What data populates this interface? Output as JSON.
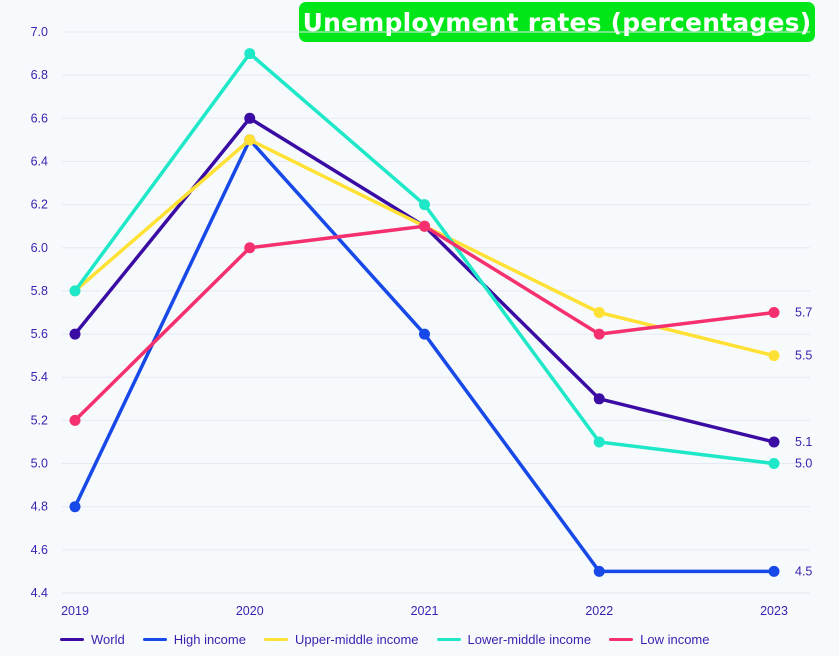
{
  "chart_data": {
    "type": "line",
    "title": "Unemployment rates (percentages)",
    "xlabel": "",
    "ylabel": "",
    "categories": [
      "2019",
      "2020",
      "2021",
      "2022",
      "2023"
    ],
    "ylim": [
      4.4,
      7.0
    ],
    "yticks": [
      "4.4",
      "4.6",
      "4.8",
      "5.0",
      "5.2",
      "5.4",
      "5.6",
      "5.8",
      "6.0",
      "6.2",
      "6.4",
      "6.6",
      "6.8",
      "7.0"
    ],
    "grid": true,
    "legend_position": "bottom",
    "series": [
      {
        "name": "World",
        "color": "#3a0ca3",
        "values": [
          5.6,
          6.6,
          6.1,
          5.3,
          5.1
        ],
        "end_label": "5.1"
      },
      {
        "name": "High income",
        "color": "#1748e8",
        "values": [
          4.8,
          6.5,
          5.6,
          4.5,
          4.5
        ],
        "end_label": "4.5"
      },
      {
        "name": "Upper-middle income",
        "color": "#ffe135",
        "values": [
          5.8,
          6.5,
          6.1,
          5.7,
          5.5
        ],
        "end_label": "5.5"
      },
      {
        "name": "Lower-middle income",
        "color": "#1ee8c8",
        "values": [
          5.8,
          6.9,
          6.2,
          5.1,
          5.0
        ],
        "end_label": "5.0"
      },
      {
        "name": "Low income",
        "color": "#f5306e",
        "values": [
          5.2,
          6.0,
          6.1,
          5.6,
          5.7
        ],
        "end_label": "5.7"
      }
    ]
  },
  "colors": {
    "axis_text": "#3a1fb0",
    "grid": "#e6e9f2",
    "title_bg": "#00e619"
  }
}
